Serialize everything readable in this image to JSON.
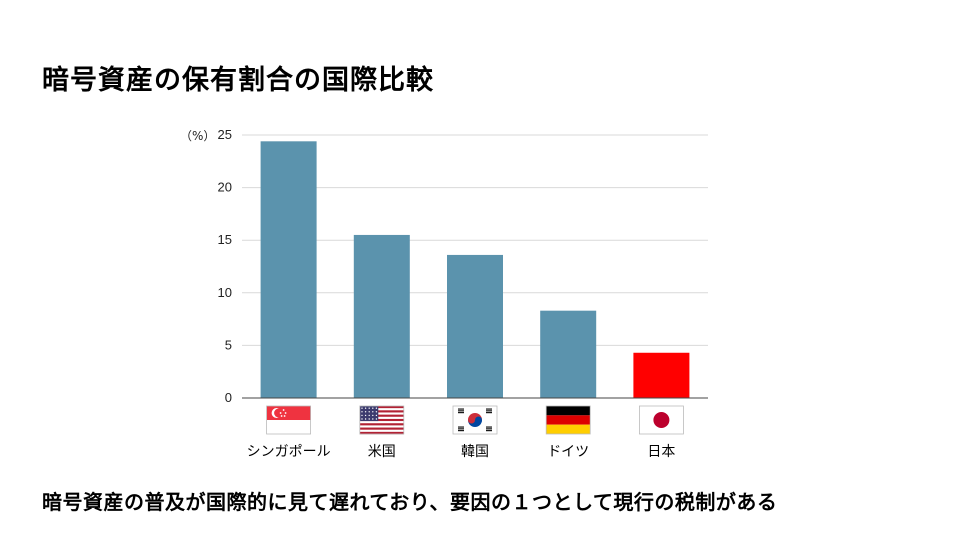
{
  "title": "暗号資産の保有割合の国際比較",
  "caption": "暗号資産の普及が国際的に見て遅れており、要因の１つとして現行の税制がある",
  "colors": {
    "bar": "#5b93ad",
    "highlight": "#ff0000",
    "grid": "#d9d9d9",
    "axis": "#444444"
  },
  "chart_data": {
    "type": "bar",
    "unit_label": "（%）",
    "categories": [
      "シンガポール",
      "米国",
      "韓国",
      "ドイツ",
      "日本"
    ],
    "values": [
      24.4,
      15.5,
      13.6,
      8.3,
      4.3
    ],
    "highlight_category": "日本",
    "category_icons": [
      "singapore-flag-icon",
      "us-flag-icon",
      "korea-flag-icon",
      "germany-flag-icon",
      "japan-flag-icon"
    ],
    "ylim": [
      0,
      25
    ],
    "yticks": [
      0,
      5,
      10,
      15,
      20,
      25
    ],
    "grid": true
  }
}
